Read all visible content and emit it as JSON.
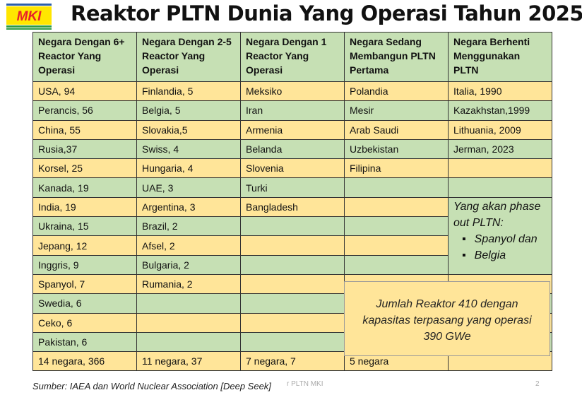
{
  "logo_text": "MKI",
  "title": "Reaktor PLTN Dunia Yang Operasi Tahun 2025",
  "headers": [
    "Negara Dengan 6+ Reactor Yang Operasi",
    "Negara Dengan 2-5 Reactor Yang Operasi",
    "Negara  Dengan 1 Reactor Yang Operasi",
    "Negara Sedang Membangun PLTN Pertama",
    "Negara Berhenti Menggunakan PLTN"
  ],
  "columns": [
    [
      "USA, 94",
      "Perancis, 56",
      "China, 55",
      "Rusia,37",
      "Korsel, 25",
      "Kanada, 19",
      "India, 19",
      "Ukraina, 15",
      "Jepang, 12",
      "Inggris, 9",
      "Spanyol, 7",
      "Swedia, 6",
      "Ceko, 6",
      "Pakistan, 6"
    ],
    [
      "Finlandia, 5",
      "Belgia, 5",
      "Slovakia,5",
      "Swiss, 4",
      "Hungaria, 4",
      "UAE, 3",
      "Argentina, 3",
      "Brazil, 2",
      "Afsel, 2",
      "Bulgaria, 2",
      "Rumania, 2",
      "",
      "",
      ""
    ],
    [
      "Meksiko",
      "Iran",
      "Armenia",
      "Belanda",
      "Slovenia",
      "Turki",
      "Bangladesh",
      "",
      "",
      "",
      "",
      "",
      "",
      ""
    ],
    [
      "Polandia",
      "Mesir",
      "Arab Saudi",
      "Uzbekistan",
      "Filipina",
      "",
      "",
      "",
      "",
      "",
      "",
      "",
      "",
      ""
    ],
    [
      "Italia, 1990",
      "Kazakhstan,1999",
      "Lithuania, 2009",
      "Jerman, 2023",
      "",
      ""
    ]
  ],
  "totals": [
    "14 negara, 366",
    "11 negara, 37",
    "7 negara, 7",
    "5 negara",
    ""
  ],
  "phase_out": {
    "heading": "Yang akan phase out PLTN:",
    "items": [
      "Spanyol dan",
      "Belgia"
    ]
  },
  "summary": {
    "line1": "Jumlah Reaktor 410 dengan",
    "line2": "kapasitas terpasang  yang operasi",
    "line3": "390 GWe"
  },
  "source": "Sumber: IAEA dan World Nuclear Association [Deep Seek]",
  "footer": "r PLTN MKI",
  "page_number": "2",
  "colors": {
    "orange_row": "#ffe599",
    "green_row": "#c6e0b4",
    "logo_red": "#e8202a",
    "logo_yellow": "#ffe600",
    "logo_green": "#2e9b45",
    "logo_blue": "#2b5fa8"
  }
}
